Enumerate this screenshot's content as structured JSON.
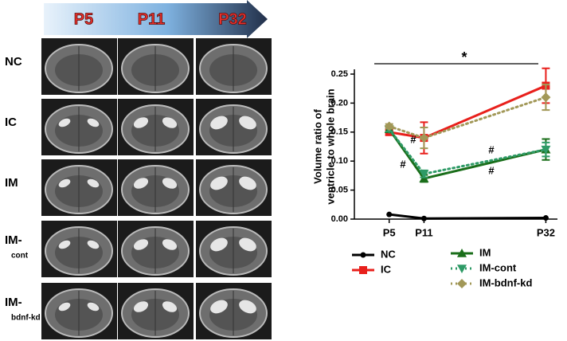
{
  "panel": {
    "stages": [
      "P5",
      "P11",
      "P32"
    ],
    "groups": [
      {
        "main": "NC"
      },
      {
        "main": "IC"
      },
      {
        "main": "IM"
      },
      {
        "main": "IM-",
        "sub": "cont"
      },
      {
        "main": "IM-",
        "sub": "bdnf-kd"
      }
    ]
  },
  "chart_data": {
    "type": "line",
    "ylabel": [
      "Volume ratio of",
      "ventricle to whole brain"
    ],
    "xticks": [
      {
        "value": 5,
        "label": "P5"
      },
      {
        "value": 11,
        "label": "P11"
      },
      {
        "value": 32,
        "label": "P32"
      }
    ],
    "x": [
      5,
      11,
      32
    ],
    "xlim": [
      -1,
      34
    ],
    "ylim": [
      0,
      0.25
    ],
    "yticks": [
      {
        "value": 0,
        "label": "0.00"
      },
      {
        "value": 0.05,
        "label": "0.05"
      },
      {
        "value": 0.1,
        "label": "0.10"
      },
      {
        "value": 0.15,
        "label": "0.15"
      },
      {
        "value": 0.2,
        "label": "0.20"
      },
      {
        "value": 0.25,
        "label": "0.25"
      }
    ],
    "annotations": [
      "*",
      "#",
      "#",
      "#",
      "#"
    ],
    "series": [
      {
        "name": "NC",
        "color": "#000000",
        "marker": "circle",
        "dash": false,
        "values": [
          0.008,
          0.001,
          0.002
        ]
      },
      {
        "name": "IC",
        "color": "#e8201c",
        "marker": "square",
        "dash": false,
        "values": [
          0.15,
          0.14,
          0.23
        ],
        "errors": [
          0.005,
          0.027,
          0.03
        ]
      },
      {
        "name": "IM",
        "color": "#1a6e1a",
        "marker": "triangle",
        "dash": false,
        "values": [
          0.155,
          0.07,
          0.12
        ],
        "errors": [
          0.004,
          0.006,
          0.018
        ]
      },
      {
        "name": "IM-cont",
        "color": "#2e9a66",
        "marker": "triangle-down",
        "dash": true,
        "values": [
          0.155,
          0.078,
          0.12
        ],
        "errors": [
          0.004,
          0.006,
          0.012
        ]
      },
      {
        "name": "IM-bdnf-kd",
        "color": "#a29858",
        "marker": "diamond",
        "dash": true,
        "values": [
          0.16,
          0.14,
          0.21
        ],
        "errors": [
          0.004,
          0.018,
          0.022
        ]
      }
    ]
  }
}
